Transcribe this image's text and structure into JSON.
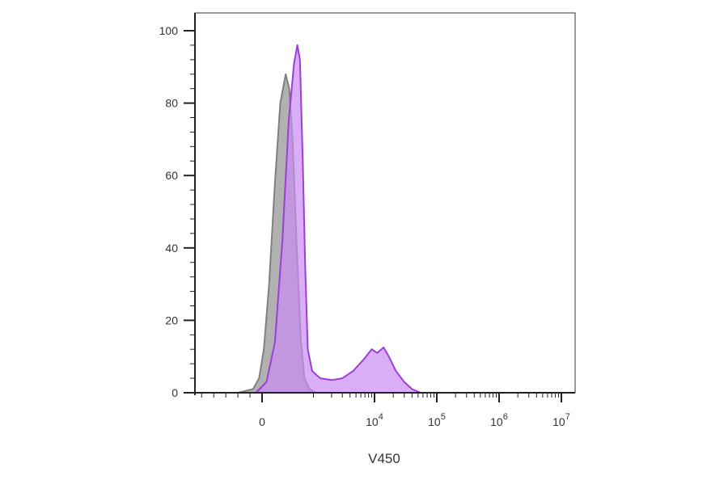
{
  "chart_data": {
    "type": "area",
    "xlabel": "V450",
    "ylim": [
      0,
      100
    ],
    "x_scale": "biexponential",
    "y_ticks": [
      {
        "value": 0,
        "label": "0"
      },
      {
        "value": 20,
        "label": "20"
      },
      {
        "value": 40,
        "label": "40"
      },
      {
        "value": 60,
        "label": "60"
      },
      {
        "value": 80,
        "label": "80"
      },
      {
        "value": 100,
        "label": "100"
      }
    ],
    "x_ticks": [
      {
        "value": 0,
        "base": "0",
        "exp": ""
      },
      {
        "value": 10000,
        "base": "10",
        "exp": "4"
      },
      {
        "value": 100000,
        "base": "10",
        "exp": "5"
      },
      {
        "value": 1000000,
        "base": "10",
        "exp": "6"
      },
      {
        "value": 10000000,
        "base": "10",
        "exp": "7"
      }
    ],
    "series": [
      {
        "color": "#808080",
        "fill": "#a8a8a8",
        "points": [
          [
            -400,
            0
          ],
          [
            -150,
            1
          ],
          [
            -50,
            4
          ],
          [
            20,
            12
          ],
          [
            80,
            30
          ],
          [
            150,
            58
          ],
          [
            220,
            80
          ],
          [
            300,
            88
          ],
          [
            360,
            84
          ],
          [
            420,
            70
          ],
          [
            500,
            42
          ],
          [
            600,
            15
          ],
          [
            700,
            4
          ],
          [
            850,
            1
          ],
          [
            1100,
            0
          ]
        ]
      },
      {
        "color": "#9b3fd6",
        "fill": "#c98cf2",
        "points": [
          [
            -100,
            0
          ],
          [
            50,
            3
          ],
          [
            150,
            14
          ],
          [
            250,
            42
          ],
          [
            350,
            75
          ],
          [
            450,
            91
          ],
          [
            520,
            96
          ],
          [
            580,
            92
          ],
          [
            650,
            65
          ],
          [
            720,
            35
          ],
          [
            800,
            12
          ],
          [
            950,
            6
          ],
          [
            1300,
            4
          ],
          [
            2000,
            3.5
          ],
          [
            3000,
            4
          ],
          [
            4500,
            6
          ],
          [
            6500,
            9
          ],
          [
            9000,
            12
          ],
          [
            11000,
            11
          ],
          [
            14000,
            12.5
          ],
          [
            17000,
            10
          ],
          [
            22000,
            6
          ],
          [
            30000,
            3
          ],
          [
            40000,
            1
          ],
          [
            55000,
            0
          ]
        ]
      }
    ]
  }
}
